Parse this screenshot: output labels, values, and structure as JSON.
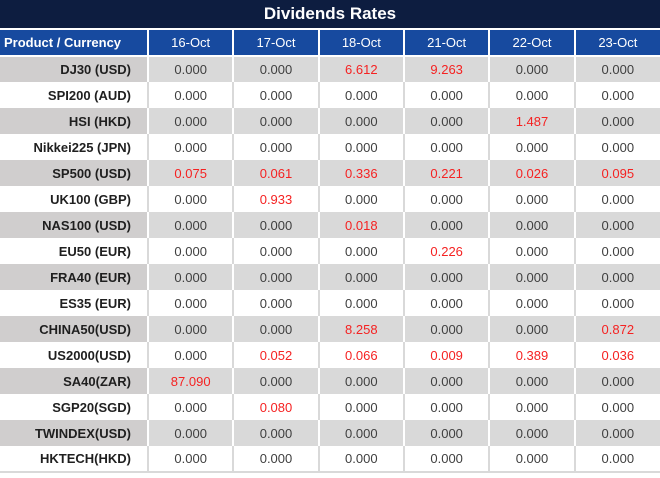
{
  "colors": {
    "title_bar_bg": "#0d1d40",
    "header_bg": "#174a9f",
    "header_text": "#ffffff",
    "stripe_bg": "#d9d9d9",
    "stripe_first_col_bg": "#d0cece",
    "value_text": "#3f3f3f",
    "product_text": "#1f1f1f",
    "red_value": "#f52222",
    "white_row_border": "#d9d9d9"
  },
  "chart_data": {
    "type": "table",
    "title": "Dividends Rates",
    "row_header_label": "Product / Currency",
    "columns": [
      "16-Oct",
      "17-Oct",
      "18-Oct",
      "21-Oct",
      "22-Oct",
      "23-Oct"
    ],
    "rows": [
      {
        "product": "DJ30 (USD)",
        "values": [
          "0.000",
          "0.000",
          "6.612",
          "9.263",
          "0.000",
          "0.000"
        ],
        "red_indices": [
          2,
          3
        ]
      },
      {
        "product": "SPI200 (AUD)",
        "values": [
          "0.000",
          "0.000",
          "0.000",
          "0.000",
          "0.000",
          "0.000"
        ],
        "red_indices": []
      },
      {
        "product": "HSI (HKD)",
        "values": [
          "0.000",
          "0.000",
          "0.000",
          "0.000",
          "1.487",
          "0.000"
        ],
        "red_indices": [
          4
        ]
      },
      {
        "product": "Nikkei225 (JPN)",
        "values": [
          "0.000",
          "0.000",
          "0.000",
          "0.000",
          "0.000",
          "0.000"
        ],
        "red_indices": []
      },
      {
        "product": "SP500 (USD)",
        "values": [
          "0.075",
          "0.061",
          "0.336",
          "0.221",
          "0.026",
          "0.095"
        ],
        "red_indices": [
          0,
          1,
          2,
          3,
          4,
          5
        ]
      },
      {
        "product": "UK100 (GBP)",
        "values": [
          "0.000",
          "0.933",
          "0.000",
          "0.000",
          "0.000",
          "0.000"
        ],
        "red_indices": [
          1
        ]
      },
      {
        "product": "NAS100 (USD)",
        "values": [
          "0.000",
          "0.000",
          "0.018",
          "0.000",
          "0.000",
          "0.000"
        ],
        "red_indices": [
          2
        ]
      },
      {
        "product": "EU50 (EUR)",
        "values": [
          "0.000",
          "0.000",
          "0.000",
          "0.226",
          "0.000",
          "0.000"
        ],
        "red_indices": [
          3
        ]
      },
      {
        "product": "FRA40 (EUR)",
        "values": [
          "0.000",
          "0.000",
          "0.000",
          "0.000",
          "0.000",
          "0.000"
        ],
        "red_indices": []
      },
      {
        "product": "ES35 (EUR)",
        "values": [
          "0.000",
          "0.000",
          "0.000",
          "0.000",
          "0.000",
          "0.000"
        ],
        "red_indices": []
      },
      {
        "product": "CHINA50(USD)",
        "values": [
          "0.000",
          "0.000",
          "8.258",
          "0.000",
          "0.000",
          "0.872"
        ],
        "red_indices": [
          2,
          5
        ]
      },
      {
        "product": "US2000(USD)",
        "values": [
          "0.000",
          "0.052",
          "0.066",
          "0.009",
          "0.389",
          "0.036"
        ],
        "red_indices": [
          1,
          2,
          3,
          4,
          5
        ]
      },
      {
        "product": "SA40(ZAR)",
        "values": [
          "87.090",
          "0.000",
          "0.000",
          "0.000",
          "0.000",
          "0.000"
        ],
        "red_indices": [
          0
        ]
      },
      {
        "product": "SGP20(SGD)",
        "values": [
          "0.000",
          "0.080",
          "0.000",
          "0.000",
          "0.000",
          "0.000"
        ],
        "red_indices": [
          1
        ]
      },
      {
        "product": "TWINDEX(USD)",
        "values": [
          "0.000",
          "0.000",
          "0.000",
          "0.000",
          "0.000",
          "0.000"
        ],
        "red_indices": []
      },
      {
        "product": "HKTECH(HKD)",
        "values": [
          "0.000",
          "0.000",
          "0.000",
          "0.000",
          "0.000",
          "0.000"
        ],
        "red_indices": []
      }
    ]
  }
}
